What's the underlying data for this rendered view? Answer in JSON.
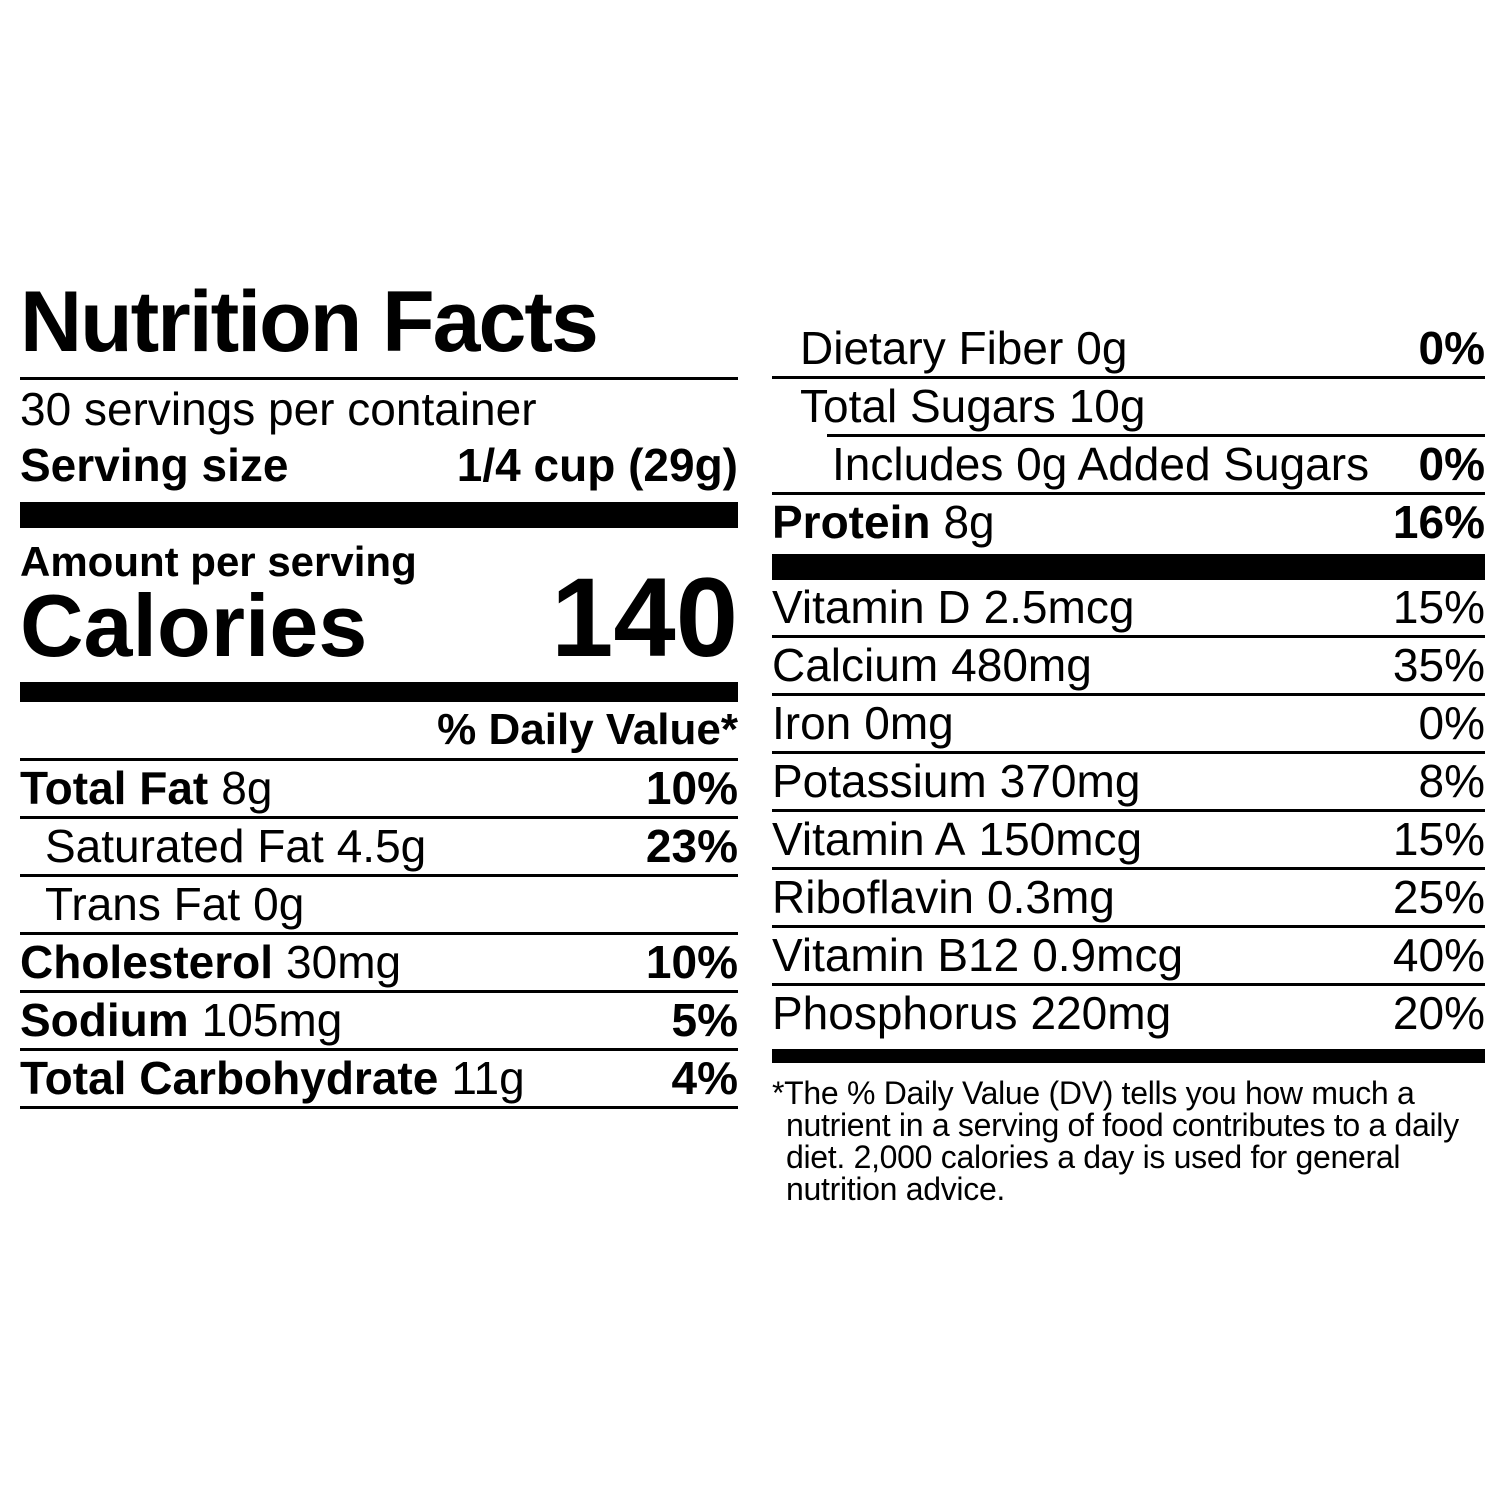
{
  "label": {
    "title": "Nutrition Facts",
    "servings_per_container": "30 servings per container",
    "serving_size_label": "Serving size",
    "serving_size_value": "1/4 cup (29g)",
    "amount_per_serving": "Amount per serving",
    "calories_label": "Calories",
    "calories_value": "140",
    "daily_value_header": "% Daily Value*",
    "left_rows": [
      {
        "name": "Total Fat",
        "amount": "8g",
        "dv": "10%"
      },
      {
        "name": "Saturated Fat",
        "amount": "4.5g",
        "dv": "23%"
      },
      {
        "name": "Trans Fat",
        "amount": "0g",
        "dv": ""
      },
      {
        "name": "Cholesterol",
        "amount": "30mg",
        "dv": "10%"
      },
      {
        "name": "Sodium",
        "amount": "105mg",
        "dv": "5%"
      },
      {
        "name": "Total Carbohydrate",
        "amount": "11g",
        "dv": "4%"
      }
    ],
    "right_rows": [
      {
        "name": "Dietary Fiber",
        "amount": "0g",
        "dv": "0%"
      },
      {
        "name": "Total Sugars",
        "amount": "10g",
        "dv": ""
      },
      {
        "name": "Includes 0g Added Sugars",
        "amount": "",
        "dv": "0%"
      },
      {
        "name": "Protein",
        "amount": "8g",
        "dv": "16%"
      }
    ],
    "micronutrient_rows": [
      {
        "name": "Vitamin D",
        "amount": "2.5mcg",
        "dv": "15%"
      },
      {
        "name": "Calcium",
        "amount": "480mg",
        "dv": "35%"
      },
      {
        "name": "Iron",
        "amount": "0mg",
        "dv": "0%"
      },
      {
        "name": "Potassium",
        "amount": "370mg",
        "dv": "8%"
      },
      {
        "name": "Vitamin A",
        "amount": "150mcg",
        "dv": "15%"
      },
      {
        "name": "Riboflavin",
        "amount": "0.3mg",
        "dv": "25%"
      },
      {
        "name": "Vitamin B12",
        "amount": "0.9mcg",
        "dv": "40%"
      },
      {
        "name": "Phosphorus",
        "amount": "220mg",
        "dv": "20%"
      }
    ],
    "footnote": "*The % Daily Value (DV) tells you how much a nutrient in a serving of food contributes to a daily diet. 2,000 calories a day is used for general nutrition advice.",
    "colors": {
      "text": "#000000",
      "background": "#ffffff"
    }
  }
}
